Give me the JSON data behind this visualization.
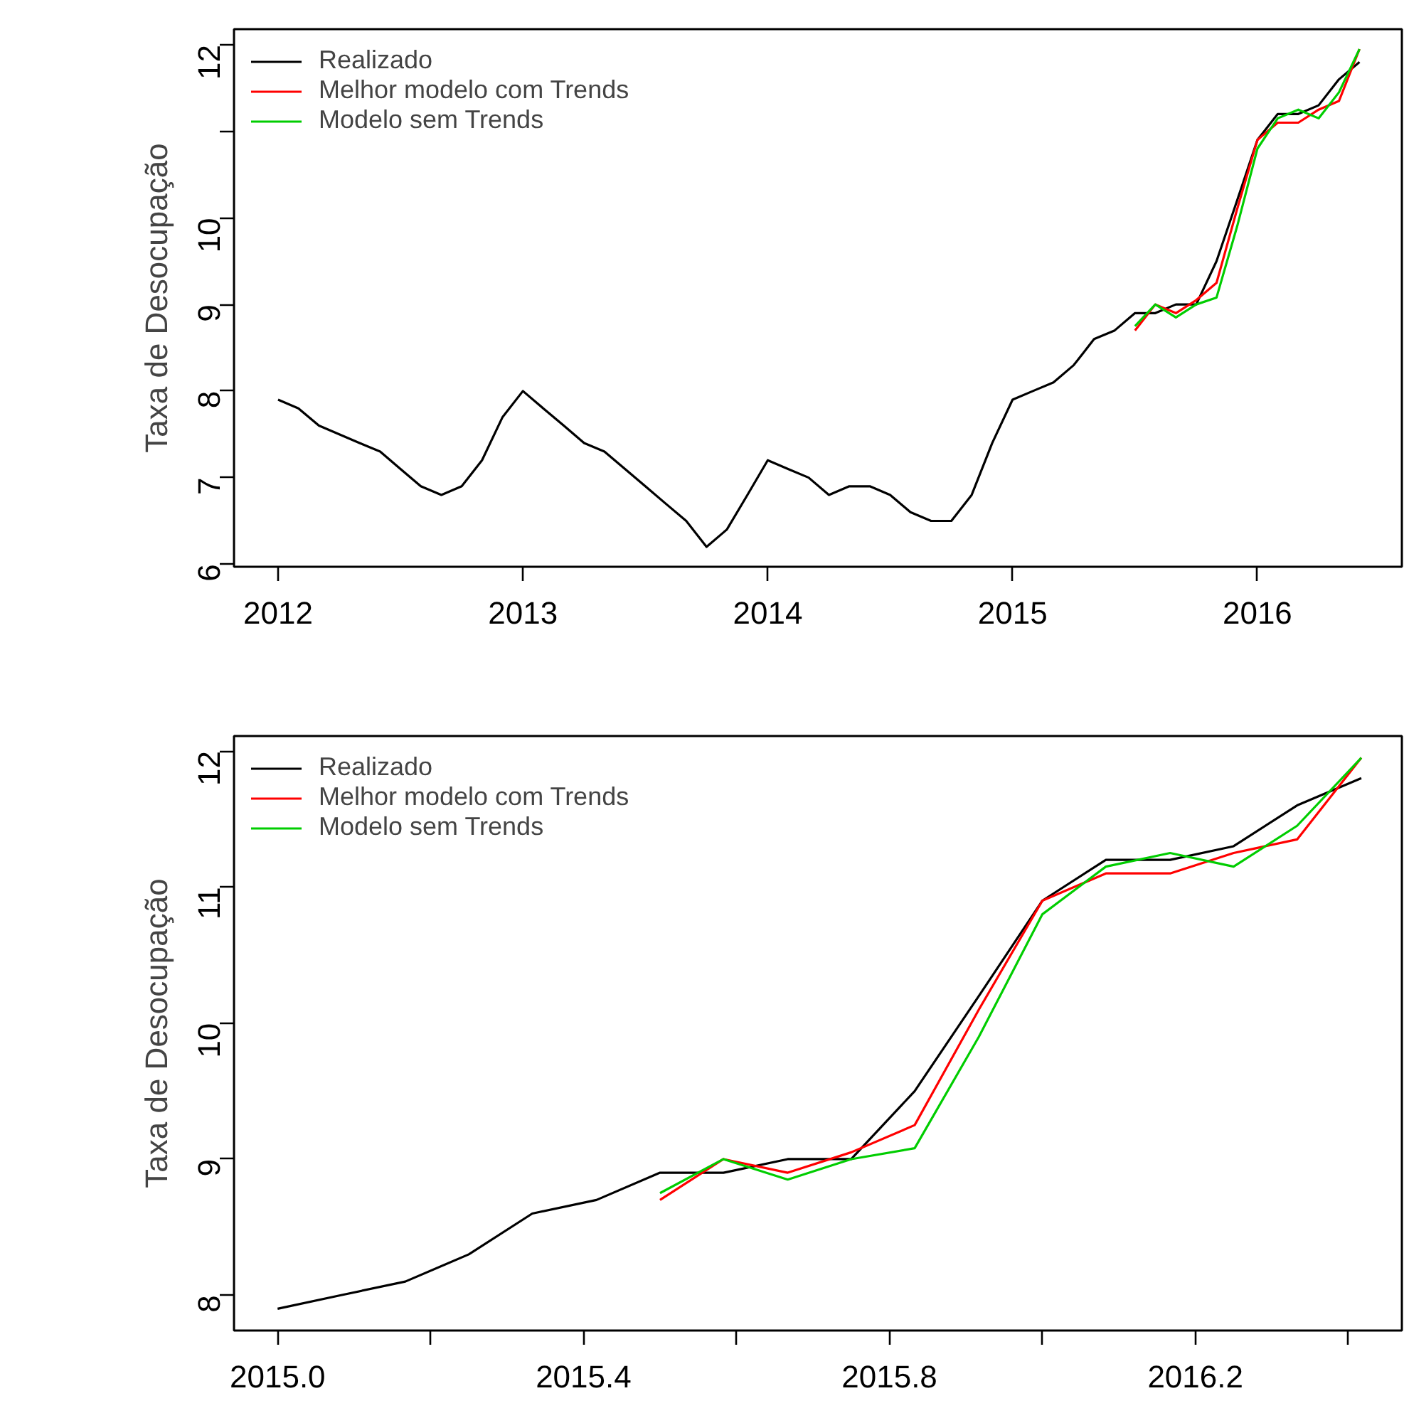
{
  "chart_data": [
    {
      "type": "line",
      "ylabel": "Taxa de Desocupação",
      "xlim": [
        2011.82,
        2016.59
      ],
      "ylim": [
        5.97,
        12.18
      ],
      "xticks": [
        2012,
        2013,
        2014,
        2015,
        2016
      ],
      "yticks": [
        6,
        7,
        8,
        9,
        10,
        {
          "value": 11,
          "label": null
        },
        12
      ],
      "grid": false,
      "legend": "top left",
      "series": [
        {
          "name": "Realizado",
          "color": "#000000",
          "x": [
            2012.0,
            2012.083,
            2012.167,
            2012.25,
            2012.333,
            2012.417,
            2012.5,
            2012.583,
            2012.667,
            2012.75,
            2012.833,
            2012.917,
            2013.0,
            2013.083,
            2013.167,
            2013.25,
            2013.333,
            2013.417,
            2013.5,
            2013.583,
            2013.667,
            2013.75,
            2013.833,
            2013.917,
            2014.0,
            2014.083,
            2014.167,
            2014.25,
            2014.333,
            2014.417,
            2014.5,
            2014.583,
            2014.667,
            2014.75,
            2014.833,
            2014.917,
            2015.0,
            2015.083,
            2015.167,
            2015.25,
            2015.333,
            2015.417,
            2015.5,
            2015.583,
            2015.667,
            2015.75,
            2015.833,
            2015.917,
            2016.0,
            2016.083,
            2016.167,
            2016.25,
            2016.333,
            2016.417
          ],
          "values": [
            7.9,
            7.8,
            7.6,
            7.5,
            7.4,
            7.3,
            7.1,
            6.9,
            6.8,
            6.9,
            7.2,
            7.7,
            8.0,
            7.8,
            7.6,
            7.4,
            7.3,
            7.1,
            6.9,
            6.7,
            6.5,
            6.2,
            6.4,
            6.8,
            7.2,
            7.1,
            7.0,
            6.8,
            6.9,
            6.9,
            6.8,
            6.6,
            6.5,
            6.5,
            6.8,
            7.4,
            7.9,
            8.0,
            8.1,
            8.3,
            8.6,
            8.7,
            8.9,
            8.9,
            9.0,
            9.0,
            9.5,
            10.2,
            10.9,
            11.2,
            11.2,
            11.3,
            11.6,
            11.8
          ]
        },
        {
          "name": "Melhor modelo com Trends",
          "color": "#ff0000",
          "x": [
            2015.5,
            2015.583,
            2015.667,
            2015.75,
            2015.833,
            2015.917,
            2016.0,
            2016.083,
            2016.167,
            2016.25,
            2016.333,
            2016.417
          ],
          "values": [
            8.7,
            9.0,
            8.9,
            9.05,
            9.25,
            10.1,
            10.9,
            11.1,
            11.1,
            11.25,
            11.35,
            11.95
          ]
        },
        {
          "name": "Modelo sem Trends",
          "color": "#00cd00",
          "x": [
            2015.5,
            2015.583,
            2015.667,
            2015.75,
            2015.833,
            2015.917,
            2016.0,
            2016.083,
            2016.167,
            2016.25,
            2016.333,
            2016.417
          ],
          "values": [
            8.75,
            9.0,
            8.85,
            9.0,
            9.08,
            9.9,
            10.8,
            11.15,
            11.25,
            11.15,
            11.45,
            11.95
          ]
        }
      ]
    },
    {
      "type": "line",
      "ylabel": "Taxa de Desocupação",
      "xlim": [
        2014.943,
        2016.47
      ],
      "ylim": [
        7.74,
        12.11
      ],
      "xticks": [
        {
          "value": 2015.0,
          "label": "2015.0"
        },
        {
          "value": 2015.2,
          "label": null
        },
        {
          "value": 2015.4,
          "label": "2015.4"
        },
        {
          "value": 2015.6,
          "label": null
        },
        {
          "value": 2015.8,
          "label": "2015.8"
        },
        {
          "value": 2016.0,
          "label": null
        },
        {
          "value": 2016.2,
          "label": "2016.2"
        },
        {
          "value": 2016.4,
          "label": null
        }
      ],
      "yticks": [
        8,
        9,
        10,
        11,
        12
      ],
      "grid": false,
      "legend": "top left",
      "series": [
        {
          "name": "Realizado",
          "color": "#000000",
          "x": [
            2015.0,
            2015.083,
            2015.167,
            2015.25,
            2015.333,
            2015.417,
            2015.5,
            2015.583,
            2015.667,
            2015.75,
            2015.833,
            2015.917,
            2016.0,
            2016.083,
            2016.167,
            2016.25,
            2016.333,
            2016.417
          ],
          "values": [
            7.9,
            8.0,
            8.1,
            8.3,
            8.6,
            8.7,
            8.9,
            8.9,
            9.0,
            9.0,
            9.5,
            10.2,
            10.9,
            11.2,
            11.2,
            11.3,
            11.6,
            11.8
          ]
        },
        {
          "name": "Melhor modelo com Trends",
          "color": "#ff0000",
          "x": [
            2015.5,
            2015.583,
            2015.667,
            2015.75,
            2015.833,
            2015.917,
            2016.0,
            2016.083,
            2016.167,
            2016.25,
            2016.333,
            2016.417
          ],
          "values": [
            8.7,
            9.0,
            8.9,
            9.05,
            9.25,
            10.1,
            10.9,
            11.1,
            11.1,
            11.25,
            11.35,
            11.95
          ]
        },
        {
          "name": "Modelo sem Trends",
          "color": "#00cd00",
          "x": [
            2015.5,
            2015.583,
            2015.667,
            2015.75,
            2015.833,
            2015.917,
            2016.0,
            2016.083,
            2016.167,
            2016.25,
            2016.333,
            2016.417
          ],
          "values": [
            8.75,
            9.0,
            8.85,
            9.0,
            9.08,
            9.9,
            10.8,
            11.15,
            11.25,
            11.15,
            11.45,
            11.95
          ]
        }
      ]
    }
  ]
}
